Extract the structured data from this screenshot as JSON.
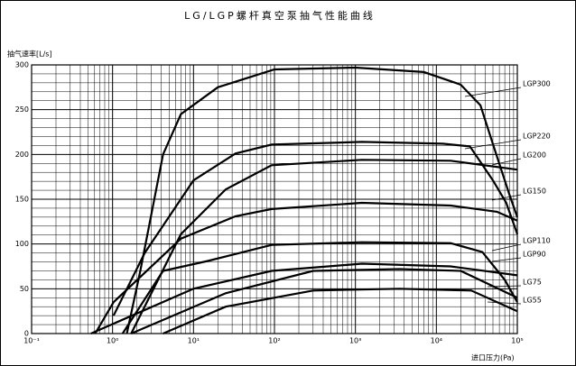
{
  "chart_data": {
    "type": "line",
    "title": "LG/LGP螺杆真空泵抽气性能曲线",
    "ylabel": "抽气速率[L/s]",
    "xlabel": "进口压力(Pa)",
    "log_x": true,
    "grid": true,
    "color": "#000000",
    "xlim": [
      0.1,
      100000
    ],
    "ylim": [
      0,
      300
    ],
    "xticks": [
      {
        "value": 0.1,
        "label": "10⁻¹"
      },
      {
        "value": 1,
        "label": "10⁰"
      },
      {
        "value": 10,
        "label": "10¹"
      },
      {
        "value": 100,
        "label": "10²"
      },
      {
        "value": 1000,
        "label": "10³"
      },
      {
        "value": 10000,
        "label": "10⁴"
      },
      {
        "value": 100000,
        "label": "10⁵"
      }
    ],
    "yticks": [
      0,
      50,
      100,
      150,
      200,
      250,
      300
    ],
    "minor_xticks": [
      0.2,
      0.3,
      0.4,
      0.5,
      0.6,
      0.7,
      0.8,
      0.9,
      2,
      3,
      4,
      5,
      6,
      7,
      8,
      9,
      20,
      30,
      40,
      50,
      60,
      70,
      80,
      90,
      200,
      300,
      400,
      500,
      600,
      700,
      800,
      900,
      2000,
      3000,
      4000,
      5000,
      6000,
      7000,
      8000,
      9000,
      20000,
      30000,
      40000,
      50000,
      60000,
      70000,
      80000,
      90000
    ],
    "minor_yticks": [
      10,
      20,
      30,
      40,
      60,
      70,
      80,
      90,
      110,
      120,
      130,
      140,
      160,
      170,
      180,
      190,
      210,
      220,
      230,
      240,
      260,
      270,
      280,
      290
    ],
    "series": [
      {
        "name": "LGP300",
        "x": [
          1.5,
          2.2,
          4.2,
          7,
          20,
          100,
          1000,
          7000,
          20000,
          35000,
          55000,
          80000,
          100000
        ],
        "values": [
          0,
          70,
          200,
          245,
          275,
          295,
          297,
          292,
          278,
          255,
          200,
          155,
          130
        ]
      },
      {
        "name": "LGP220",
        "x": [
          1.03,
          2.5,
          10,
          33,
          92,
          1200,
          12000,
          26000,
          50000,
          73000,
          100000
        ],
        "values": [
          20,
          90,
          171,
          201,
          211,
          214,
          212,
          209,
          171,
          146,
          111
        ]
      },
      {
        "name": "LG200",
        "x": [
          1.7,
          7,
          25,
          92,
          1200,
          15000,
          100000
        ],
        "values": [
          0,
          111,
          161,
          188,
          194,
          193,
          183
        ]
      },
      {
        "name": "LG150",
        "x": [
          0.61,
          1.03,
          7,
          33,
          92,
          1200,
          15000,
          56000,
          100000
        ],
        "values": [
          0,
          35,
          106,
          131,
          139,
          146,
          143,
          136,
          126
        ]
      },
      {
        "name": "LGP110",
        "x": [
          1.33,
          4.2,
          15,
          92,
          1200,
          15000,
          37000,
          70000,
          100000
        ],
        "values": [
          0,
          70,
          81,
          99,
          102,
          101,
          91,
          60,
          35
        ]
      },
      {
        "name": "LGP90",
        "x": [
          0.54,
          10,
          92,
          1200,
          15000,
          100000
        ],
        "values": [
          0,
          50,
          70,
          78,
          75,
          65
        ]
      },
      {
        "name": "LG75",
        "x": [
          1.7,
          25,
          300,
          3500,
          20000,
          100000
        ],
        "values": [
          0,
          45,
          70,
          72,
          70,
          40
        ]
      },
      {
        "name": "LG55",
        "x": [
          4.2,
          25,
          300,
          3500,
          27000,
          100000
        ],
        "values": [
          0,
          30,
          48,
          50,
          48,
          25
        ]
      }
    ]
  }
}
